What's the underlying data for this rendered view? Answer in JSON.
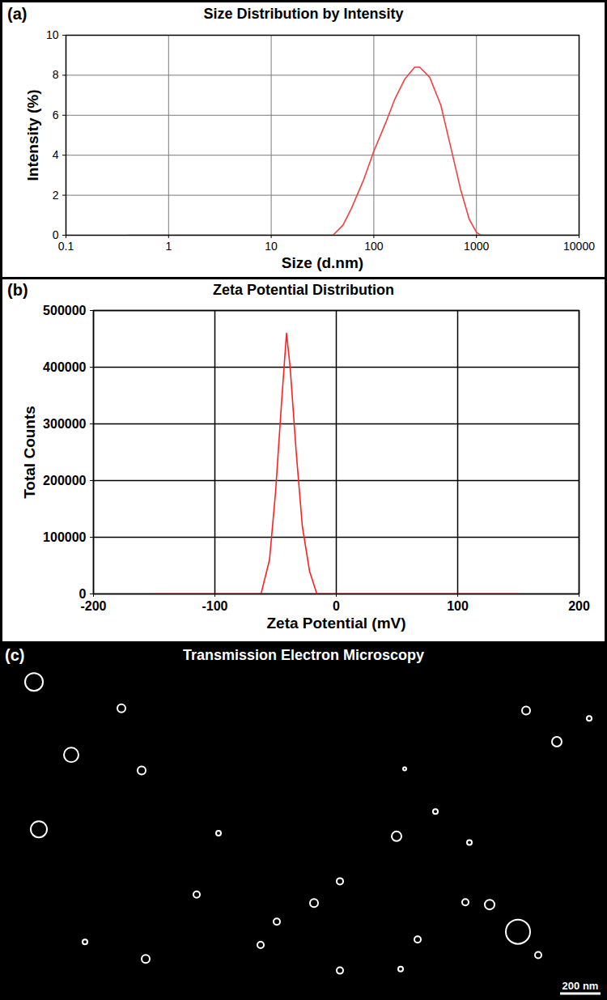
{
  "chart_data": [
    {
      "type": "line",
      "panel": "(a)",
      "title": "Size Distribution by Intensity",
      "x_label": "Size (d.nm)",
      "y_label": "Intensity (%)",
      "x": [
        0.4,
        40,
        50,
        60,
        80,
        100,
        130,
        160,
        200,
        250,
        280,
        350,
        450,
        550,
        700,
        850,
        1000,
        1100,
        10000
      ],
      "values": [
        0,
        0,
        0.5,
        1.3,
        2.8,
        4.2,
        5.6,
        6.8,
        7.8,
        8.4,
        8.4,
        7.9,
        6.5,
        4.6,
        2.3,
        0.8,
        0.15,
        0,
        0
      ],
      "color": "#f04040",
      "log": "x",
      "grid": true,
      "xlim": [
        0.1,
        10000
      ],
      "xticks": [
        0.1,
        1,
        10,
        100,
        1000,
        10000
      ],
      "ylim": [
        0,
        10
      ],
      "yticks": [
        0,
        2,
        4,
        6,
        8,
        10
      ]
    },
    {
      "type": "line",
      "panel": "(b)",
      "title": "Zeta Potential Distribution",
      "x_label": "Zeta Potential (mV)",
      "y_label": "Total Counts",
      "x": [
        -150,
        -62,
        -55,
        -50,
        -45,
        -41,
        -38,
        -33,
        -28,
        -22,
        -16,
        150
      ],
      "values": [
        0,
        0,
        60000,
        180000,
        340000,
        460000,
        400000,
        250000,
        120000,
        40000,
        0,
        0
      ],
      "color": "#ff2020",
      "grid": true,
      "xlim": [
        -200,
        200
      ],
      "xticks": [
        -200,
        -100,
        0,
        100,
        200
      ],
      "ylim": [
        0,
        500000
      ],
      "yticks": [
        0,
        100000,
        200000,
        300000,
        400000,
        500000
      ]
    },
    {
      "type": "image",
      "panel": "(c)",
      "title": "Transmission Electron Microscopy",
      "color": "#ffffff",
      "tick_labels": false,
      "xlim": [
        0,
        3000
      ],
      "ylim": [
        0,
        1720
      ],
      "particles": {
        "x": [
          168,
          600,
          352,
          700,
          1080,
          192,
          972,
          1552,
          1680,
          1960,
          2152,
          2600,
          2752,
          2912,
          2300,
          2420,
          2560,
          420,
          720,
          1288,
          1368,
          1680,
          2064,
          2660,
          2000,
          2320,
          1980
        ],
        "y": [
          80,
          216,
          456,
          536,
          860,
          840,
          1176,
          1220,
          1108,
          876,
          748,
          228,
          388,
          268,
          1216,
          1228,
          1368,
          1420,
          1508,
          1436,
          1316,
          1568,
          1408,
          1488,
          528,
          908,
          1560
        ],
        "d": [
          88,
          40,
          72,
          40,
          24,
          80,
          32,
          40,
          32,
          48,
          24,
          40,
          48,
          24,
          32,
          48,
          120,
          24,
          40,
          32,
          32,
          32,
          32,
          32,
          16,
          24,
          24
        ]
      },
      "scale_bar": {
        "value": 200,
        "label": "200 nm"
      }
    }
  ]
}
